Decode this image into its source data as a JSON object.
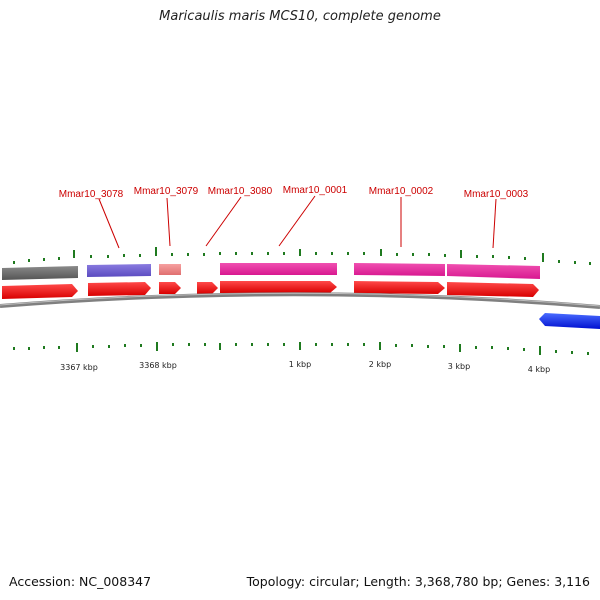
{
  "title": "Maricaulis maris MCS10, complete genome",
  "footer": {
    "accession": "Accession: NC_008347",
    "summary": "Topology: circular; Length: 3,368,780 bp; Genes: 3,116"
  },
  "gene_labels": [
    "Mmar10_3078",
    "Mmar10_3079",
    "Mmar10_3080",
    "Mmar10_0001",
    "Mmar10_0002",
    "Mmar10_0003"
  ],
  "scale_labels": [
    "3367 kbp",
    "3368 kbp",
    "1 kbp",
    "2 kbp",
    "3 kbp",
    "4 kbp"
  ],
  "colors": {
    "cds": "#ff0000",
    "label_text": "#cc0000",
    "tick": "#1f7a1f",
    "backbone": "#808080",
    "reverse_strand": "#0000ff",
    "feature_gray": "#666666",
    "feature_purple": "#6a5acd",
    "feature_salmon": "#f08080",
    "feature_pink": "#e6189a"
  }
}
